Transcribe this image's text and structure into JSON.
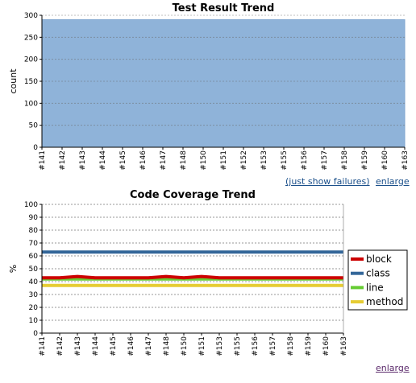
{
  "links": {
    "just_show_failures": "(just show failures)",
    "enlarge_1": "enlarge",
    "enlarge_2": "enlarge"
  },
  "colors": {
    "test_area": "#8fb3d9",
    "block": "#cc0000",
    "class": "#336699",
    "line": "#66cc33",
    "method": "#e6cc33"
  },
  "chart_data": [
    {
      "type": "area",
      "title": "Test Result Trend",
      "xlabel": "",
      "ylabel": "count",
      "ylim": [
        0,
        300
      ],
      "yticks": [
        "0",
        "50",
        "100",
        "150",
        "200",
        "250",
        "300"
      ],
      "grid": true,
      "categories": [
        "#141",
        "#142",
        "#143",
        "#144",
        "#145",
        "#146",
        "#147",
        "#148",
        "#150",
        "#151",
        "#152",
        "#153",
        "#155",
        "#156",
        "#157",
        "#158",
        "#159",
        "#160",
        "#163"
      ],
      "series": [
        {
          "values": [
            290,
            290,
            290,
            290,
            290,
            290,
            290,
            290,
            290,
            290,
            290,
            290,
            290,
            290,
            290,
            290,
            290,
            290,
            290
          ]
        }
      ]
    },
    {
      "type": "line",
      "title": "Code Coverage Trend",
      "xlabel": "",
      "ylabel": "%",
      "ylim": [
        0,
        100
      ],
      "yticks": [
        "0",
        "10",
        "20",
        "30",
        "40",
        "50",
        "60",
        "70",
        "80",
        "90",
        "100"
      ],
      "grid": true,
      "legend": "right",
      "categories": [
        "#141",
        "#142",
        "#143",
        "#144",
        "#145",
        "#146",
        "#147",
        "#148",
        "#150",
        "#151",
        "#153",
        "#155",
        "#156",
        "#157",
        "#158",
        "#159",
        "#160",
        "#163"
      ],
      "series": [
        {
          "name": "block",
          "values": [
            43,
            43,
            44,
            43,
            43,
            43,
            43,
            44,
            43,
            44,
            43,
            43,
            43,
            43,
            43,
            43,
            43,
            43
          ]
        },
        {
          "name": "class",
          "values": [
            63,
            63,
            63,
            63,
            63,
            63,
            63,
            63,
            63,
            63,
            63,
            63,
            63,
            63,
            63,
            63,
            63,
            63
          ]
        },
        {
          "name": "line",
          "values": [
            42,
            42,
            42,
            42,
            42,
            42,
            42,
            42,
            42,
            42,
            42,
            42,
            42,
            42,
            42,
            42,
            42,
            42
          ]
        },
        {
          "name": "method",
          "values": [
            37,
            37,
            37,
            37,
            37,
            37,
            37,
            37,
            37,
            37,
            37,
            37,
            37,
            37,
            37,
            37,
            37,
            37
          ]
        }
      ]
    }
  ]
}
